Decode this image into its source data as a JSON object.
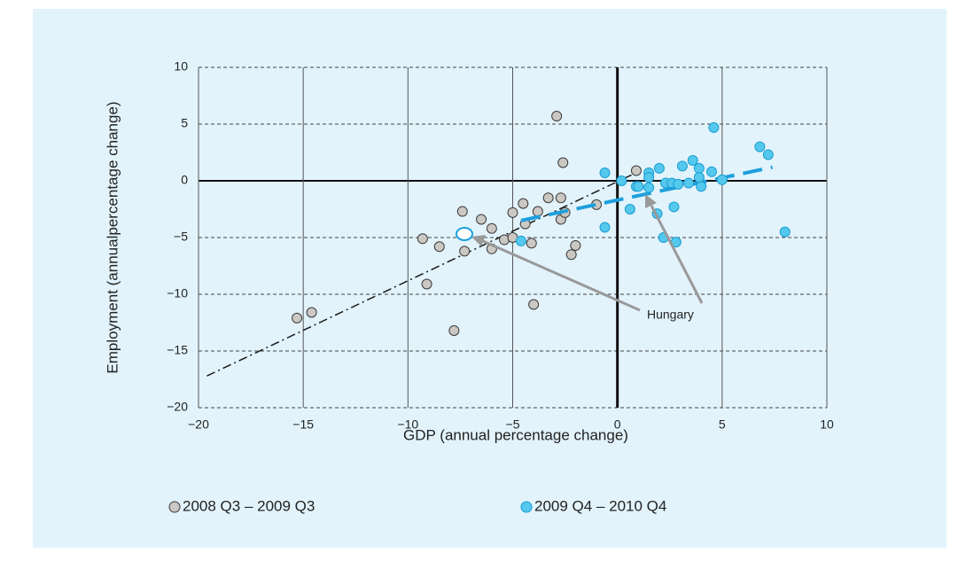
{
  "chart_data": {
    "type": "scatter",
    "xlabel": "GDP (annual percentage change)",
    "ylabel": "Employment (annualpercentage change)",
    "xlim": [
      -20,
      10
    ],
    "ylim": [
      -20,
      10
    ],
    "xticks": [
      {
        "value": -20,
        "label": "−20"
      },
      {
        "value": -15,
        "label": "−15"
      },
      {
        "value": -10,
        "label": "−10"
      },
      {
        "value": -5,
        "label": "−5"
      },
      0,
      5,
      10
    ],
    "yticks": [
      {
        "value": -20,
        "label": "−20"
      },
      {
        "value": -15,
        "label": "−15"
      },
      {
        "value": -10,
        "label": "−10"
      },
      {
        "value": -5,
        "label": "−5"
      },
      0,
      5,
      10
    ],
    "grid": true,
    "legend": "bottom",
    "annotation": "Hungary",
    "series": [
      {
        "name": "2008 Q3 – 2009 Q3",
        "color": "#cbc7c3",
        "edge": "#3a3a3a",
        "x": [
          -15.3,
          -14.6,
          -9.3,
          -8.5,
          -9.1,
          -7.8,
          -7.4,
          -7.3,
          -6.5,
          -6.0,
          -6.0,
          -5.4,
          -5.0,
          -5.0,
          -4.5,
          -4.4,
          -4.1,
          -3.8,
          -4.0,
          -3.3,
          -2.9,
          -2.7,
          -2.7,
          -2.6,
          -2.5,
          -2.0,
          -2.2,
          -1.0,
          0.9
        ],
        "values": [
          -12.1,
          -11.6,
          -5.1,
          -5.8,
          -9.1,
          -13.2,
          -2.7,
          -6.2,
          -3.4,
          -4.2,
          -6.0,
          -5.2,
          -2.8,
          -5.0,
          -2.0,
          -3.8,
          -5.5,
          -2.7,
          -10.9,
          -1.5,
          5.7,
          -1.5,
          -3.4,
          1.6,
          -2.8,
          -5.7,
          -6.5,
          -2.1,
          0.9
        ],
        "trend": {
          "x": [
            -19.6,
            1.0
          ],
          "values": [
            -17.2,
            0.8
          ],
          "color": "#1a1a1a"
        }
      },
      {
        "name": "2009 Q4 – 2010 Q4",
        "color": "#55c8ee",
        "edge": "#1a9ed0",
        "x": [
          -0.6,
          -0.6,
          0.2,
          0.6,
          0.9,
          1.0,
          1.5,
          1.5,
          1.5,
          1.9,
          2.0,
          2.2,
          2.3,
          2.6,
          2.7,
          2.8,
          2.9,
          3.1,
          3.4,
          3.6,
          3.9,
          3.9,
          4.0,
          4.5,
          4.6,
          5.0,
          6.8,
          7.2,
          8.0,
          -4.6
        ],
        "values": [
          0.7,
          -4.1,
          0.0,
          -2.5,
          -0.5,
          -0.5,
          0.7,
          0.3,
          -0.6,
          -2.9,
          1.1,
          -5.0,
          -0.2,
          -0.2,
          -2.3,
          -5.4,
          -0.3,
          1.3,
          -0.2,
          1.8,
          1.1,
          0.3,
          -0.5,
          0.8,
          4.7,
          0.1,
          3.0,
          2.3,
          -4.5,
          -5.3
        ],
        "trend": {
          "x": [
            -4.6,
            7.4
          ],
          "values": [
            -3.5,
            1.2
          ],
          "color": "#1ea0dc"
        }
      }
    ]
  }
}
